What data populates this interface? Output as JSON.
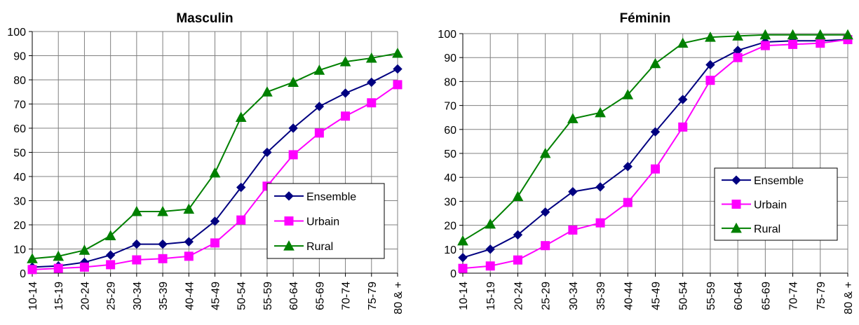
{
  "charts": [
    {
      "type": "line",
      "title": "Masculin",
      "categories": [
        "10-14",
        "15-19",
        "20-24",
        "25-29",
        "30-34",
        "35-39",
        "40-44",
        "45-49",
        "50-54",
        "55-59",
        "60-64",
        "65-69",
        "70-74",
        "75-79",
        "80 & +"
      ],
      "ylim": [
        0,
        100
      ],
      "yticks": [
        0,
        10,
        20,
        30,
        40,
        50,
        60,
        70,
        80,
        90,
        100
      ],
      "grid": true,
      "legend_position": "right",
      "series": [
        {
          "name": "Ensemble",
          "color": "#000080",
          "marker": "diamond",
          "values": [
            2.5,
            3,
            4.5,
            7.5,
            12,
            12,
            13,
            21.5,
            35.5,
            50,
            60,
            69,
            74.5,
            79,
            84.5
          ]
        },
        {
          "name": "Urbain",
          "color": "#FF00FF",
          "marker": "square",
          "values": [
            1.5,
            2,
            2.5,
            3.5,
            5.5,
            6,
            7,
            12.5,
            22,
            36,
            49,
            58,
            65,
            70.5,
            78
          ]
        },
        {
          "name": "Rural",
          "color": "#008000",
          "marker": "triangle",
          "values": [
            6,
            7,
            9.5,
            15.5,
            25.5,
            25.5,
            26.5,
            41.5,
            64.5,
            75,
            79,
            84,
            87.5,
            89,
            91
          ]
        }
      ]
    },
    {
      "type": "line",
      "title": "Féminin",
      "categories": [
        "10-14",
        "15-19",
        "20-24",
        "25-29",
        "30-34",
        "35-39",
        "40-44",
        "45-49",
        "50-54",
        "55-59",
        "60-64",
        "65-69",
        "70-74",
        "75-79",
        "80 & +"
      ],
      "ylim": [
        0,
        100
      ],
      "yticks": [
        0,
        10,
        20,
        30,
        40,
        50,
        60,
        70,
        80,
        90,
        100
      ],
      "grid": true,
      "legend_position": "right",
      "series": [
        {
          "name": "Ensemble",
          "color": "#000080",
          "marker": "diamond",
          "values": [
            6.5,
            10,
            16,
            25.5,
            34,
            36,
            44.5,
            59,
            72.5,
            87,
            93,
            96.5,
            97,
            97,
            97.5
          ]
        },
        {
          "name": "Urbain",
          "color": "#FF00FF",
          "marker": "square",
          "values": [
            2,
            3,
            5.5,
            11.5,
            18,
            21,
            29.5,
            43.5,
            61,
            80.5,
            90,
            95,
            95.5,
            96,
            97.5
          ]
        },
        {
          "name": "Rural",
          "color": "#008000",
          "marker": "triangle",
          "values": [
            13.5,
            20.5,
            32,
            50,
            64.5,
            67,
            74.5,
            87.5,
            96,
            98.5,
            99,
            99.5,
            99.5,
            99.5,
            99.5
          ]
        }
      ]
    }
  ]
}
